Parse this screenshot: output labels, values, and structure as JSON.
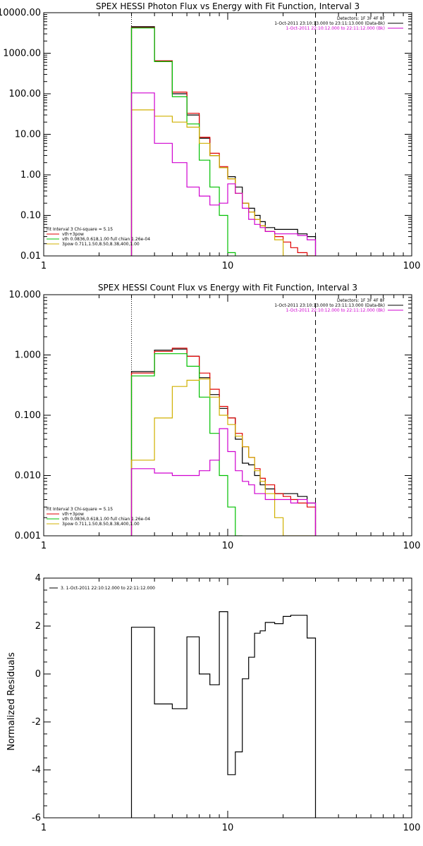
{
  "chart_data": [
    {
      "type": "line",
      "title": "SPEX HESSI Photon Flux vs Energy with Fit Function, Interval 3",
      "xscale": "log",
      "yscale": "log",
      "xlim": [
        1,
        100
      ],
      "ylim": [
        0.01,
        10000
      ],
      "xticks": [
        {
          "v": 1,
          "label": "1"
        },
        {
          "v": 10,
          "label": "10"
        },
        {
          "v": 100,
          "label": "100"
        }
      ],
      "yticks": [
        {
          "v": 0.01,
          "label": "0.01"
        },
        {
          "v": 0.1,
          "label": "0.10"
        },
        {
          "v": 1,
          "label": "1.00"
        },
        {
          "v": 10,
          "label": "10.00"
        },
        {
          "v": 100,
          "label": "100.00"
        },
        {
          "v": 1000,
          "label": "1000.00"
        },
        {
          "v": 10000,
          "label": "10000.00"
        }
      ],
      "vlines": [
        {
          "x": 3,
          "style": "dotted"
        },
        {
          "x": 30,
          "style": "dashed"
        }
      ],
      "info_lines": [
        "Detectors: 1F 3F 4F 8F",
        "1-Oct-2011 23:10:13.000 to 23:11:13.000 (Data-Bk)",
        "1-Oct-2011 22:10:12.000 to 22:11:12.000 (Bk)"
      ],
      "info_colors": [
        "#000000",
        "#000000",
        "#d000d0"
      ],
      "fit_lines": [
        "Fit Interval 3   Chi-square = 5.15",
        "vth+3pow",
        "vth 0.0836,0.618,1.00  full chian 1.26e-04",
        "3pow 0.711,1.50,8.50,8.38,400,1.00"
      ],
      "fit_colors": [
        "#000000",
        "#e00000",
        "#00c000",
        "#d0b000"
      ],
      "series": [
        {
          "name": "Data-Bk",
          "color": "#000000",
          "edges": [
            3,
            4,
            5,
            6,
            7,
            8,
            9,
            10,
            11,
            12,
            13,
            14,
            15,
            16,
            18,
            20,
            22,
            24,
            27,
            30
          ],
          "values": [
            4500,
            650,
            100,
            30,
            8,
            3,
            1.5,
            0.9,
            0.5,
            0.2,
            0.15,
            0.1,
            0.07,
            0.05,
            0.045,
            0.045,
            0.045,
            0.035,
            0.03
          ]
        },
        {
          "name": "vth+3pow",
          "color": "#e00000",
          "edges": [
            3,
            4,
            5,
            6,
            7,
            8,
            9,
            10,
            11,
            12,
            13,
            14,
            15,
            16,
            18,
            20,
            22,
            24,
            27,
            30
          ],
          "values": [
            4300,
            650,
            110,
            33,
            8.5,
            3.4,
            1.6,
            0.8,
            0.35,
            0.2,
            0.12,
            0.08,
            0.055,
            0.04,
            0.03,
            0.022,
            0.016,
            0.012,
            0.01
          ]
        },
        {
          "name": "vth",
          "color": "#00c000",
          "edges": [
            3,
            4,
            5,
            6,
            7,
            8,
            9,
            10,
            11
          ],
          "values": [
            4200,
            620,
            85,
            18,
            2.3,
            0.5,
            0.1,
            0.012
          ]
        },
        {
          "name": "3pow",
          "color": "#d0b000",
          "edges": [
            3,
            4,
            5,
            6,
            7,
            8,
            9,
            10,
            11,
            12,
            13,
            14,
            15,
            16,
            18,
            20,
            22,
            24,
            27,
            30
          ],
          "values": [
            40,
            28,
            20,
            15,
            6,
            3,
            1.5,
            0.8,
            0.35,
            0.2,
            0.12,
            0.08,
            0.055,
            0.04,
            0.025,
            0.01,
            0.01,
            0.01,
            0.01
          ]
        },
        {
          "name": "Bk",
          "color": "#d000d0",
          "edges": [
            3,
            4,
            5,
            6,
            7,
            8,
            9,
            10,
            11,
            12,
            13,
            14,
            15,
            16,
            18,
            20,
            22,
            24,
            27,
            30
          ],
          "values": [
            105,
            6,
            2,
            0.5,
            0.3,
            0.18,
            0.2,
            0.6,
            0.35,
            0.15,
            0.08,
            0.06,
            0.05,
            0.04,
            0.035,
            0.035,
            0.035,
            0.032,
            0.025
          ]
        }
      ]
    },
    {
      "type": "line",
      "title": "SPEX HESSI Count Flux vs Energy with Fit Function, Interval 3",
      "xscale": "log",
      "yscale": "log",
      "xlim": [
        1,
        100
      ],
      "ylim": [
        0.001,
        10
      ],
      "xticks": [
        {
          "v": 1,
          "label": "1"
        },
        {
          "v": 10,
          "label": "10"
        },
        {
          "v": 100,
          "label": "100"
        }
      ],
      "yticks": [
        {
          "v": 0.001,
          "label": "0.001"
        },
        {
          "v": 0.01,
          "label": "0.010"
        },
        {
          "v": 0.1,
          "label": "0.100"
        },
        {
          "v": 1,
          "label": "1.000"
        },
        {
          "v": 10,
          "label": "10.000"
        }
      ],
      "vlines": [
        {
          "x": 3,
          "style": "dotted"
        },
        {
          "x": 30,
          "style": "dashed"
        }
      ],
      "info_lines": [
        "Detectors: 1F 3F 4F 8F",
        "1-Oct-2011 23:10:13.000 to 23:11:13.000 (Data-Bk)",
        "1-Oct-2011 22:10:12.000 to 22:11:12.000 (Bk)"
      ],
      "info_colors": [
        "#000000",
        "#000000",
        "#d000d0"
      ],
      "fit_lines": [
        "Fit Interval 3   Chi-square = 5.15",
        "vth+3pow",
        "vth 0.0836,0.618,1.00  full chian 1.26e-04",
        "3pow 0.711,1.50,8.50,8.38,400,1.00"
      ],
      "fit_colors": [
        "#000000",
        "#e00000",
        "#00c000",
        "#d0b000"
      ],
      "series": [
        {
          "name": "Data-Bk",
          "color": "#000000",
          "edges": [
            3,
            4,
            5,
            6,
            7,
            8,
            9,
            10,
            11,
            12,
            13,
            14,
            15,
            16,
            18,
            20,
            22,
            24,
            27,
            30
          ],
          "values": [
            0.53,
            1.2,
            1.25,
            0.95,
            0.42,
            0.22,
            0.13,
            0.09,
            0.04,
            0.016,
            0.015,
            0.01,
            0.007,
            0.006,
            0.005,
            0.005,
            0.005,
            0.0045,
            0.0035
          ]
        },
        {
          "name": "vth+3pow",
          "color": "#e00000",
          "edges": [
            3,
            4,
            5,
            6,
            7,
            8,
            9,
            10,
            11,
            12,
            13,
            14,
            15,
            16,
            18,
            20,
            22,
            24,
            27,
            30
          ],
          "values": [
            0.5,
            1.15,
            1.3,
            0.95,
            0.5,
            0.27,
            0.14,
            0.09,
            0.05,
            0.03,
            0.02,
            0.013,
            0.009,
            0.007,
            0.005,
            0.0045,
            0.004,
            0.0035,
            0.003
          ]
        },
        {
          "name": "vth",
          "color": "#00c000",
          "edges": [
            3,
            4,
            5,
            6,
            7,
            8,
            9,
            10,
            11,
            12
          ],
          "values": [
            0.45,
            1.05,
            1.05,
            0.65,
            0.2,
            0.05,
            0.01,
            0.003,
            0.001
          ]
        },
        {
          "name": "3pow",
          "color": "#d0b000",
          "edges": [
            3,
            4,
            5,
            6,
            7,
            8,
            9,
            10,
            11,
            12,
            13,
            14,
            15,
            16,
            18,
            20,
            22,
            24,
            27,
            30
          ],
          "values": [
            0.018,
            0.09,
            0.3,
            0.38,
            0.4,
            0.2,
            0.1,
            0.07,
            0.045,
            0.03,
            0.02,
            0.012,
            0.008,
            0.005,
            0.002,
            0.001,
            0.001,
            0.001,
            0.001
          ]
        },
        {
          "name": "Bk",
          "color": "#d000d0",
          "edges": [
            3,
            4,
            5,
            6,
            7,
            8,
            9,
            10,
            11,
            12,
            13,
            14,
            15,
            16,
            18,
            20,
            22,
            24,
            27,
            30
          ],
          "values": [
            0.013,
            0.011,
            0.01,
            0.01,
            0.012,
            0.018,
            0.06,
            0.025,
            0.012,
            0.008,
            0.007,
            0.005,
            0.005,
            0.004,
            0.004,
            0.004,
            0.0035,
            0.004,
            0.0035
          ]
        }
      ]
    },
    {
      "type": "line",
      "title": "",
      "xscale": "log",
      "yscale": "linear",
      "xlim": [
        1,
        100
      ],
      "ylim": [
        -6,
        4
      ],
      "ylabel": "Normalized Residuals",
      "xticks": [
        {
          "v": 1,
          "label": "1"
        },
        {
          "v": 10,
          "label": "10"
        },
        {
          "v": 100,
          "label": "100"
        }
      ],
      "yticks": [
        {
          "v": -6,
          "label": "-6"
        },
        {
          "v": -4,
          "label": "-4"
        },
        {
          "v": -2,
          "label": "-2"
        },
        {
          "v": 0,
          "label": "0"
        },
        {
          "v": 2,
          "label": "2"
        },
        {
          "v": 4,
          "label": "4"
        }
      ],
      "legend": "3. 1-Oct-2011 22:10:12.000 to 22:11:12.000",
      "series": [
        {
          "name": "",
          "color": "#000000",
          "edges": [
            3,
            4,
            5,
            6,
            7,
            8,
            9,
            10,
            11,
            12,
            13,
            14,
            15,
            16,
            18,
            20,
            22,
            24,
            27,
            30
          ],
          "values": [
            1.95,
            -1.25,
            -1.45,
            1.55,
            0.0,
            -0.45,
            2.6,
            -4.2,
            -3.25,
            -0.2,
            0.7,
            1.7,
            1.8,
            2.15,
            2.1,
            2.4,
            2.45,
            2.45,
            1.5
          ]
        }
      ]
    }
  ]
}
